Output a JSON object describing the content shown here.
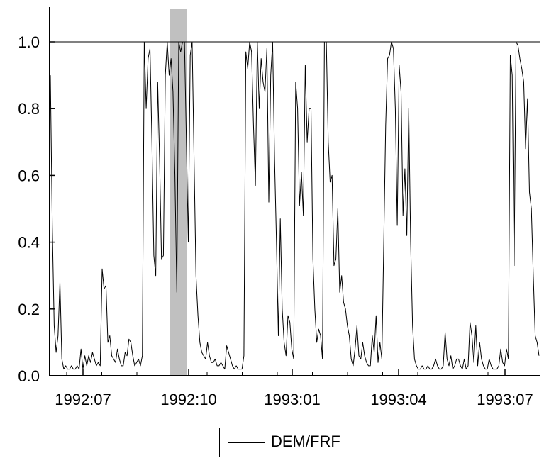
{
  "chart_data": {
    "type": "line",
    "title": "",
    "xlabel": "",
    "ylabel": "",
    "ylim": [
      0.0,
      1.1
    ],
    "x_tick_labels": [
      "1992:07",
      "1992:10",
      "1993:01",
      "1993:04",
      "1993:07"
    ],
    "y_tick_labels": [
      "0.0",
      "0.2",
      "0.4",
      "0.6",
      "0.8",
      "1.0"
    ],
    "y_ticks": [
      0.0,
      0.2,
      0.4,
      0.6,
      0.8,
      1.0
    ],
    "reference_line": 1.0,
    "shaded_region": {
      "from": "1992:09 (late)",
      "to": "1992:10 (early)"
    },
    "legend_position": "bottom-center",
    "grid": false,
    "series": [
      {
        "name": "DEM/FRF",
        "color": "#000000",
        "points": [
          [
            0,
            0.9
          ],
          [
            1,
            0.45
          ],
          [
            2,
            0.15
          ],
          [
            3,
            0.07
          ],
          [
            4,
            0.12
          ],
          [
            5,
            0.28
          ],
          [
            6,
            0.05
          ],
          [
            7,
            0.02
          ],
          [
            8,
            0.03
          ],
          [
            9,
            0.02
          ],
          [
            10,
            0.02
          ],
          [
            11,
            0.03
          ],
          [
            12,
            0.02
          ],
          [
            13,
            0.02
          ],
          [
            14,
            0.03
          ],
          [
            15,
            0.02
          ],
          [
            16,
            0.08
          ],
          [
            17,
            0.02
          ],
          [
            18,
            0.06
          ],
          [
            19,
            0.03
          ],
          [
            20,
            0.06
          ],
          [
            21,
            0.04
          ],
          [
            22,
            0.07
          ],
          [
            23,
            0.05
          ],
          [
            24,
            0.03
          ],
          [
            25,
            0.04
          ],
          [
            26,
            0.03
          ],
          [
            27,
            0.32
          ],
          [
            28,
            0.26
          ],
          [
            29,
            0.27
          ],
          [
            30,
            0.1
          ],
          [
            31,
            0.12
          ],
          [
            32,
            0.06
          ],
          [
            33,
            0.05
          ],
          [
            34,
            0.04
          ],
          [
            35,
            0.08
          ],
          [
            36,
            0.05
          ],
          [
            37,
            0.03
          ],
          [
            38,
            0.03
          ],
          [
            39,
            0.07
          ],
          [
            40,
            0.06
          ],
          [
            41,
            0.11
          ],
          [
            42,
            0.1
          ],
          [
            43,
            0.06
          ],
          [
            44,
            0.03
          ],
          [
            45,
            0.04
          ],
          [
            46,
            0.05
          ],
          [
            47,
            0.03
          ],
          [
            48,
            0.06
          ],
          [
            49,
            1.0
          ],
          [
            50,
            0.8
          ],
          [
            51,
            0.95
          ],
          [
            52,
            0.98
          ],
          [
            53,
            0.7
          ],
          [
            54,
            0.36
          ],
          [
            55,
            0.3
          ],
          [
            56,
            0.88
          ],
          [
            57,
            0.65
          ],
          [
            58,
            0.35
          ],
          [
            59,
            0.36
          ],
          [
            60,
            0.9
          ],
          [
            61,
            1.0
          ],
          [
            62,
            0.9
          ],
          [
            63,
            0.95
          ],
          [
            64,
            0.85
          ],
          [
            65,
            0.6
          ],
          [
            66,
            0.25
          ],
          [
            67,
            1.0
          ],
          [
            68,
            0.97
          ],
          [
            69,
            1.0
          ],
          [
            70,
            1.0
          ],
          [
            71,
            0.7
          ],
          [
            72,
            0.4
          ],
          [
            73,
            0.96
          ],
          [
            74,
            1.0
          ],
          [
            75,
            0.65
          ],
          [
            76,
            0.3
          ],
          [
            77,
            0.18
          ],
          [
            78,
            0.1
          ],
          [
            79,
            0.07
          ],
          [
            80,
            0.06
          ],
          [
            81,
            0.05
          ],
          [
            82,
            0.1
          ],
          [
            83,
            0.06
          ],
          [
            84,
            0.04
          ],
          [
            85,
            0.04
          ],
          [
            86,
            0.05
          ],
          [
            87,
            0.03
          ],
          [
            88,
            0.03
          ],
          [
            89,
            0.04
          ],
          [
            90,
            0.03
          ],
          [
            91,
            0.02
          ],
          [
            92,
            0.09
          ],
          [
            93,
            0.07
          ],
          [
            94,
            0.05
          ],
          [
            95,
            0.03
          ],
          [
            96,
            0.02
          ],
          [
            97,
            0.03
          ],
          [
            98,
            0.02
          ],
          [
            99,
            0.02
          ],
          [
            100,
            0.02
          ],
          [
            101,
            0.06
          ],
          [
            102,
            0.97
          ],
          [
            103,
            0.92
          ],
          [
            104,
            1.0
          ],
          [
            105,
            0.97
          ],
          [
            106,
            0.75
          ],
          [
            107,
            0.57
          ],
          [
            108,
            1.0
          ],
          [
            109,
            0.8
          ],
          [
            110,
            0.95
          ],
          [
            111,
            0.88
          ],
          [
            112,
            0.85
          ],
          [
            113,
            0.98
          ],
          [
            114,
            0.52
          ],
          [
            115,
            0.9
          ],
          [
            116,
            1.0
          ],
          [
            117,
            0.65
          ],
          [
            118,
            0.4
          ],
          [
            119,
            0.12
          ],
          [
            120,
            0.47
          ],
          [
            121,
            0.2
          ],
          [
            122,
            0.1
          ],
          [
            123,
            0.06
          ],
          [
            124,
            0.18
          ],
          [
            125,
            0.16
          ],
          [
            126,
            0.08
          ],
          [
            127,
            0.05
          ],
          [
            128,
            0.88
          ],
          [
            129,
            0.8
          ],
          [
            130,
            0.51
          ],
          [
            131,
            0.61
          ],
          [
            132,
            0.48
          ],
          [
            133,
            0.93
          ],
          [
            134,
            0.7
          ],
          [
            135,
            0.8
          ],
          [
            136,
            0.8
          ],
          [
            137,
            0.35
          ],
          [
            138,
            0.2
          ],
          [
            139,
            0.1
          ],
          [
            140,
            0.14
          ],
          [
            141,
            0.12
          ],
          [
            142,
            0.05
          ],
          [
            143,
            1.0
          ],
          [
            144,
            1.0
          ],
          [
            145,
            0.7
          ],
          [
            146,
            0.58
          ],
          [
            147,
            0.6
          ],
          [
            148,
            0.33
          ],
          [
            149,
            0.35
          ],
          [
            150,
            0.5
          ],
          [
            151,
            0.25
          ],
          [
            152,
            0.3
          ],
          [
            153,
            0.22
          ],
          [
            154,
            0.2
          ],
          [
            155,
            0.15
          ],
          [
            156,
            0.12
          ],
          [
            157,
            0.05
          ],
          [
            158,
            0.03
          ],
          [
            159,
            0.08
          ],
          [
            160,
            0.15
          ],
          [
            161,
            0.06
          ],
          [
            162,
            0.05
          ],
          [
            163,
            0.1
          ],
          [
            164,
            0.06
          ],
          [
            165,
            0.04
          ],
          [
            166,
            0.03
          ],
          [
            167,
            0.03
          ],
          [
            168,
            0.12
          ],
          [
            169,
            0.07
          ],
          [
            170,
            0.18
          ],
          [
            171,
            0.04
          ],
          [
            172,
            0.1
          ],
          [
            173,
            0.05
          ],
          [
            174,
            0.4
          ],
          [
            175,
            0.75
          ],
          [
            176,
            0.95
          ],
          [
            177,
            0.96
          ],
          [
            178,
            1.0
          ],
          [
            179,
            0.98
          ],
          [
            180,
            0.8
          ],
          [
            181,
            0.45
          ],
          [
            182,
            0.93
          ],
          [
            183,
            0.85
          ],
          [
            184,
            0.48
          ],
          [
            185,
            0.62
          ],
          [
            186,
            0.42
          ],
          [
            187,
            0.8
          ],
          [
            188,
            0.4
          ],
          [
            189,
            0.15
          ],
          [
            190,
            0.05
          ],
          [
            191,
            0.03
          ],
          [
            192,
            0.02
          ],
          [
            193,
            0.02
          ],
          [
            194,
            0.03
          ],
          [
            195,
            0.02
          ],
          [
            196,
            0.02
          ],
          [
            197,
            0.03
          ],
          [
            198,
            0.02
          ],
          [
            199,
            0.02
          ],
          [
            200,
            0.03
          ],
          [
            201,
            0.05
          ],
          [
            202,
            0.03
          ],
          [
            203,
            0.02
          ],
          [
            204,
            0.02
          ],
          [
            205,
            0.03
          ],
          [
            206,
            0.13
          ],
          [
            207,
            0.05
          ],
          [
            208,
            0.03
          ],
          [
            209,
            0.06
          ],
          [
            210,
            0.02
          ],
          [
            211,
            0.03
          ],
          [
            212,
            0.05
          ],
          [
            213,
            0.05
          ],
          [
            214,
            0.03
          ],
          [
            215,
            0.02
          ],
          [
            216,
            0.05
          ],
          [
            217,
            0.02
          ],
          [
            218,
            0.03
          ],
          [
            219,
            0.16
          ],
          [
            220,
            0.12
          ],
          [
            221,
            0.04
          ],
          [
            222,
            0.15
          ],
          [
            223,
            0.03
          ],
          [
            224,
            0.1
          ],
          [
            225,
            0.05
          ],
          [
            226,
            0.03
          ],
          [
            227,
            0.02
          ],
          [
            228,
            0.02
          ],
          [
            229,
            0.05
          ],
          [
            230,
            0.03
          ],
          [
            231,
            0.02
          ],
          [
            232,
            0.02
          ],
          [
            233,
            0.02
          ],
          [
            234,
            0.03
          ],
          [
            235,
            0.08
          ],
          [
            236,
            0.04
          ],
          [
            237,
            0.03
          ],
          [
            238,
            0.08
          ],
          [
            239,
            0.05
          ],
          [
            240,
            0.96
          ],
          [
            241,
            0.9
          ],
          [
            242,
            0.33
          ],
          [
            243,
            1.0
          ],
          [
            244,
            0.99
          ],
          [
            245,
            0.95
          ],
          [
            246,
            0.92
          ],
          [
            247,
            0.88
          ],
          [
            248,
            0.68
          ],
          [
            249,
            0.83
          ],
          [
            250,
            0.55
          ],
          [
            251,
            0.5
          ],
          [
            252,
            0.3
          ],
          [
            253,
            0.12
          ],
          [
            254,
            0.1
          ],
          [
            255,
            0.06
          ]
        ]
      }
    ]
  },
  "legend": {
    "label": "DEM/FRF"
  }
}
